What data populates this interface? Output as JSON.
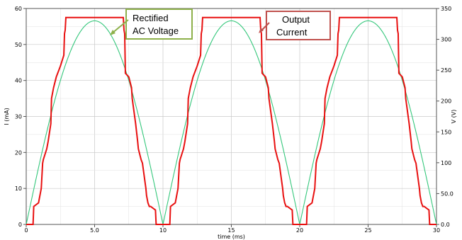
{
  "chart_data": {
    "type": "line",
    "xlabel": "time (ms)",
    "ylabel_left": "I (mA)",
    "ylabel_right": "V (V)",
    "xlim": [
      0,
      30
    ],
    "ylim_left": [
      0,
      60
    ],
    "ylim_right": [
      0,
      350
    ],
    "x_ticks": [
      "0",
      "5.0",
      "10",
      "15",
      "20",
      "25",
      "30"
    ],
    "y_left_ticks": [
      "0",
      "10",
      "20",
      "30",
      "40",
      "50",
      "60"
    ],
    "y_right_ticks": [
      "0.0",
      "50.0",
      "100",
      "150",
      "200",
      "250",
      "300",
      "350"
    ],
    "grid": true,
    "series": [
      {
        "axis": "left",
        "color": "#e81010",
        "period": 10,
        "x": [
          0,
          0.5,
          0.55,
          0.9,
          1.0,
          1.1,
          1.2,
          1.25,
          1.5,
          1.6,
          1.8,
          1.85,
          2.0,
          2.2,
          2.3,
          2.5,
          2.75,
          2.8,
          2.85,
          2.9,
          7.1,
          7.15,
          7.2,
          7.25,
          7.5,
          7.7,
          7.75,
          8.0,
          8.15,
          8.2,
          8.4,
          8.5,
          8.75,
          8.8,
          8.9,
          9.0,
          9.1,
          9.45,
          9.5,
          10
        ],
        "y": [
          0,
          0,
          5,
          6,
          8,
          10,
          17,
          18,
          21,
          23,
          28,
          35,
          38,
          41,
          42,
          44,
          47,
          53,
          54,
          57.5,
          57.5,
          54,
          53,
          42,
          41,
          38,
          35,
          28,
          23,
          21,
          18,
          17,
          10,
          8,
          6,
          5,
          5,
          4,
          0,
          0
        ]
      },
      {
        "axis": "right",
        "color": "#34c77b",
        "period": 10,
        "shape": "rectified-sine",
        "peak": 330
      }
    ]
  },
  "callouts": {
    "voltage_line1": "Rectified",
    "voltage_line2": "AC Voltage",
    "current_line1": "Output",
    "current_line2": "Current"
  },
  "colors": {
    "voltage_box_border": "#8db04a",
    "current_box_border": "#c0504d",
    "grid": "#c8c8c8",
    "y_left_label_color": "#e81010",
    "y_right_label_color": "#34c77b"
  }
}
